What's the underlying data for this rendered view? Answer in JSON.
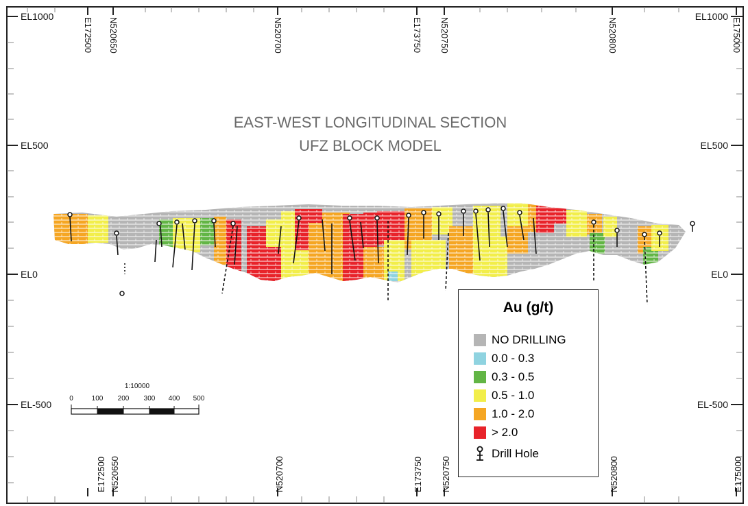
{
  "title": {
    "line1": "EAST-WEST LONGITUDINAL SECTION",
    "line2": "UFZ BLOCK MODEL"
  },
  "elevation_labels": {
    "el1000_left": "EL1000",
    "el1000_right": "EL1000",
    "el500_left": "EL500",
    "el500_right": "EL500",
    "el0_left": "EL0",
    "el0_right": "EL0",
    "elm500_left": "EL-500",
    "elm500_right": "EL-500"
  },
  "grid_top": {
    "e172500": "E172500",
    "n520650": "N520650",
    "n520700": "N520700",
    "e173750": "E173750",
    "n520750": "N520750",
    "n520800": "N520800",
    "e175000": "E175000"
  },
  "grid_bottom": {
    "e172500": "E172500",
    "n520650": "N520650",
    "n520700": "N520700",
    "e173750": "E173750",
    "n520750": "N520750",
    "n520800": "N520800",
    "e175000": "E175000"
  },
  "scale_bar": {
    "ratio": "1:10000",
    "ticks": [
      "0",
      "100",
      "200",
      "300",
      "400",
      "500"
    ]
  },
  "legend": {
    "title": "Au (g/t)",
    "items": [
      {
        "label": "NO DRILLING",
        "color": "#b5b5b5"
      },
      {
        "label": "0.0 - 0.3",
        "color": "#8fd3e0"
      },
      {
        "label": "0.3 - 0.5",
        "color": "#62b545"
      },
      {
        "label": "0.5 - 1.0",
        "color": "#f2ee4a"
      },
      {
        "label": "1.0 - 2.0",
        "color": "#f5a623"
      },
      {
        "label": "> 2.0",
        "color": "#e8232a"
      }
    ],
    "drill_hole_label": "Drill Hole"
  },
  "colors": {
    "no_drilling": "#b5b5b5",
    "au_0_0_3": "#8fd3e0",
    "au_0_3_0_5": "#62b545",
    "au_0_5_1": "#f2ee4a",
    "au_1_2": "#f5a623",
    "au_gt_2": "#e8232a",
    "frame": "#222222",
    "title_text": "#6b6b6b"
  }
}
